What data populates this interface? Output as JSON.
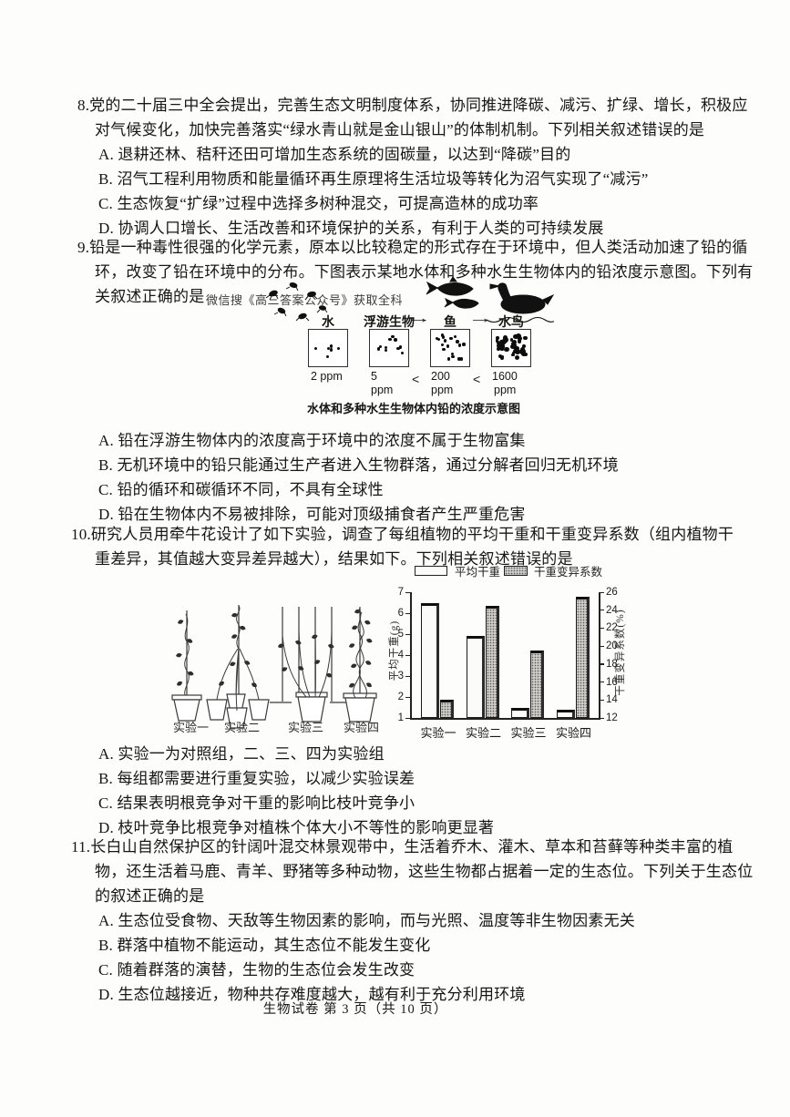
{
  "doc": {
    "footer": "生物试卷 第 3 页（共 10 页）"
  },
  "q8": {
    "lines": [
      "8.党的二十届三中全会提出，完善生态文明制度体系，协同推进降碳、减污、扩绿、增长，积极应",
      "对气候变化，加快完善落实“绿水青山就是金山银山”的体制机制。下列相关叙述错误的是"
    ],
    "options": [
      "A. 退耕还林、秸秆还田可增加生态系统的固碳量，以达到“降碳”目的",
      "B. 沼气工程利用物质和能量循环再生原理将生活垃圾等转化为沼气实现了“减污”",
      "C. 生态恢复“扩绿”过程中选择多树种混交，可提高造林的成功率",
      "D. 协调人口增长、生活改善和环境保护的关系，有利于人类的可持续发展"
    ]
  },
  "q9": {
    "lines": [
      "9.铅是一种毒性很强的化学元素，原本以比较稳定的形式存在于环境中，但人类活动加速了铅的循",
      "环，改变了铅在环境中的分布。下图表示某地水体和多种水生生物体内的铅浓度示意图。下列有",
      "关叙述正确的是"
    ],
    "watermark": "微信搜《高三答案公众号》获取全科",
    "diagram": {
      "arrow": "→",
      "caption": "水体和多种水生生物体内铅的浓度示意图",
      "boxes": [
        {
          "label": "水",
          "lt": "",
          "value": "2 ppm",
          "value2": "",
          "dots": 6
        },
        {
          "label": "浮游生物",
          "lt": "",
          "value": "5",
          "value2": "ppm",
          "dots": 10
        },
        {
          "label": "鱼",
          "lt": "<",
          "value": "200",
          "value2": "ppm",
          "dots": 18
        },
        {
          "label": "水鸟",
          "lt": "<",
          "value": "1600",
          "value2": "ppm",
          "dots": 46
        }
      ]
    },
    "options": [
      "A. 铅在浮游生物体内的浓度高于环境中的浓度不属于生物富集",
      "B. 无机环境中的铅只能通过生产者进入生物群落，通过分解者回归无机环境",
      "C. 铅的循环和碳循环不同，不具有全球性",
      "D. 铅在生物体内不易被排除，可能对顶级捕食者产生严重危害"
    ]
  },
  "q10": {
    "lines": [
      "10.研究人员用牵牛花设计了如下实验，调查了每组植物的平均干重和干重变异系数（组内植物干",
      "重差异，其值越大变异差异越大），结果如下。下列相关叙述错误的是"
    ],
    "options": [
      "A. 实验一为对照组，二、三、四为实验组",
      "B. 每组都需要进行重复实验，以减少实验误差",
      "C. 结果表明根竞争对干重的影响比枝叶竞争小",
      "D. 枝叶竞争比根竞争对植株个体大小不等性的影响更显著"
    ]
  },
  "q11": {
    "lines": [
      "11.长白山自然保护区的针阔叶混交林景观带中，生活着乔木、灌木、草本和苔藓等种类丰富的植",
      "物，还生活着马鹿、青羊、野猪等多种动物，这些生物都占据着一定的生态位。下列关于生态位",
      "的叙述正确的是"
    ],
    "options": [
      "A. 生态位受食物、天敌等生物因素的影响，而与光照、温度等非生物因素无关",
      "B. 群落中植物不能运动，其生态位不能发生变化",
      "C. 随着群落的演替，生物的生态位会发生改变",
      "D. 生态位越接近，物种共存难度越大，越有利于充分利用环境"
    ]
  },
  "chart_data": {
    "type": "bar",
    "title": "",
    "categories": [
      "实验一",
      "实验二",
      "实验三",
      "实验四"
    ],
    "series": [
      {
        "name": "平均干重",
        "axis": "left",
        "values": [
          6.5,
          4.9,
          1.5,
          1.4
        ]
      },
      {
        "name": "干重变异系数",
        "axis": "right",
        "values": [
          14,
          24.5,
          19.5,
          25.5
        ]
      }
    ],
    "left_axis": {
      "label": "平均干重(g)",
      "min": 1,
      "max": 7,
      "ticks": [
        1,
        2,
        3,
        4,
        5,
        6,
        7
      ]
    },
    "right_axis": {
      "label": "干重变异系数(%)",
      "min": 12,
      "max": 26,
      "ticks": [
        12,
        14,
        16,
        18,
        20,
        22,
        24,
        26
      ]
    },
    "legend": [
      "平均干重",
      "干重变异系数"
    ],
    "legend_position": "top",
    "grid": false
  }
}
